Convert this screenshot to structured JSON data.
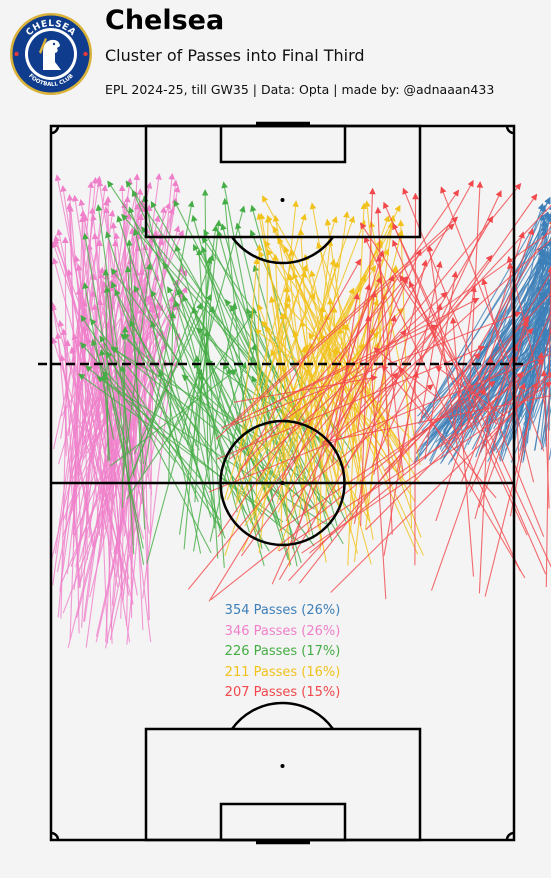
{
  "header": {
    "team": "Chelsea",
    "subtitle": "Cluster of Passes into Final Third",
    "credit": "EPL 2024-25, till GW35 | Data: Opta | made by: @adnaaan433"
  },
  "logo": {
    "icon": "chelsea-crest-icon",
    "ring_text_top": "CHELSEA",
    "ring_text_bottom": "FOOTBALL CLUB"
  },
  "colors": {
    "background": "#f4f4f4",
    "lines": "#000000",
    "blue": "#3d7fb8",
    "pink": "#f07fca",
    "green": "#45ad45",
    "yellow": "#f2c21c",
    "red": "#f2474b",
    "crest_blue": "#0f3c8c",
    "crest_gold": "#d9b23a"
  },
  "chart_data": {
    "type": "scatter",
    "title": "Cluster of Passes into Final Third",
    "description_of_marks": "pass arrows grouped into 5 clusters",
    "series": [
      {
        "name": "354 Passes (26%)",
        "passes": 354,
        "share_pct": 26,
        "color": "#3d7fb8",
        "start_zone": {
          "x": [
            53,
            77
          ],
          "y": [
            55,
            63
          ]
        },
        "end_zone": {
          "x": [
            72,
            78
          ],
          "y": [
            75,
            95
          ]
        }
      },
      {
        "name": "346 Passes (26%)",
        "passes": 346,
        "share_pct": 26,
        "color": "#f07fca",
        "start_zone": {
          "x": [
            0,
            15
          ],
          "y": [
            28,
            63
          ]
        },
        "end_zone": {
          "x": [
            0,
            20
          ],
          "y": [
            70,
            98
          ]
        }
      },
      {
        "name": "226 Passes (17%)",
        "passes": 226,
        "share_pct": 17,
        "color": "#45ad45",
        "start_zone": {
          "x": [
            7,
            45
          ],
          "y": [
            40,
            60
          ]
        },
        "end_zone": {
          "x": [
            4,
            30
          ],
          "y": [
            68,
            97
          ]
        }
      },
      {
        "name": "211 Passes (16%)",
        "passes": 211,
        "share_pct": 16,
        "color": "#f2c21c",
        "start_zone": {
          "x": [
            25,
            55
          ],
          "y": [
            40,
            60
          ]
        },
        "end_zone": {
          "x": [
            30,
            52
          ],
          "y": [
            72,
            95
          ]
        }
      },
      {
        "name": "207 Passes (15%)",
        "passes": 207,
        "share_pct": 15,
        "color": "#f2474b",
        "start_zone": {
          "x": [
            20,
            75
          ],
          "y": [
            35,
            65
          ]
        },
        "end_zone": {
          "x": [
            45,
            78
          ],
          "y": [
            66,
            97
          ]
        }
      }
    ],
    "pitch": {
      "length": 105,
      "width": 68,
      "final_third_line": 70
    },
    "grid": false,
    "legend": "center-bottom"
  }
}
